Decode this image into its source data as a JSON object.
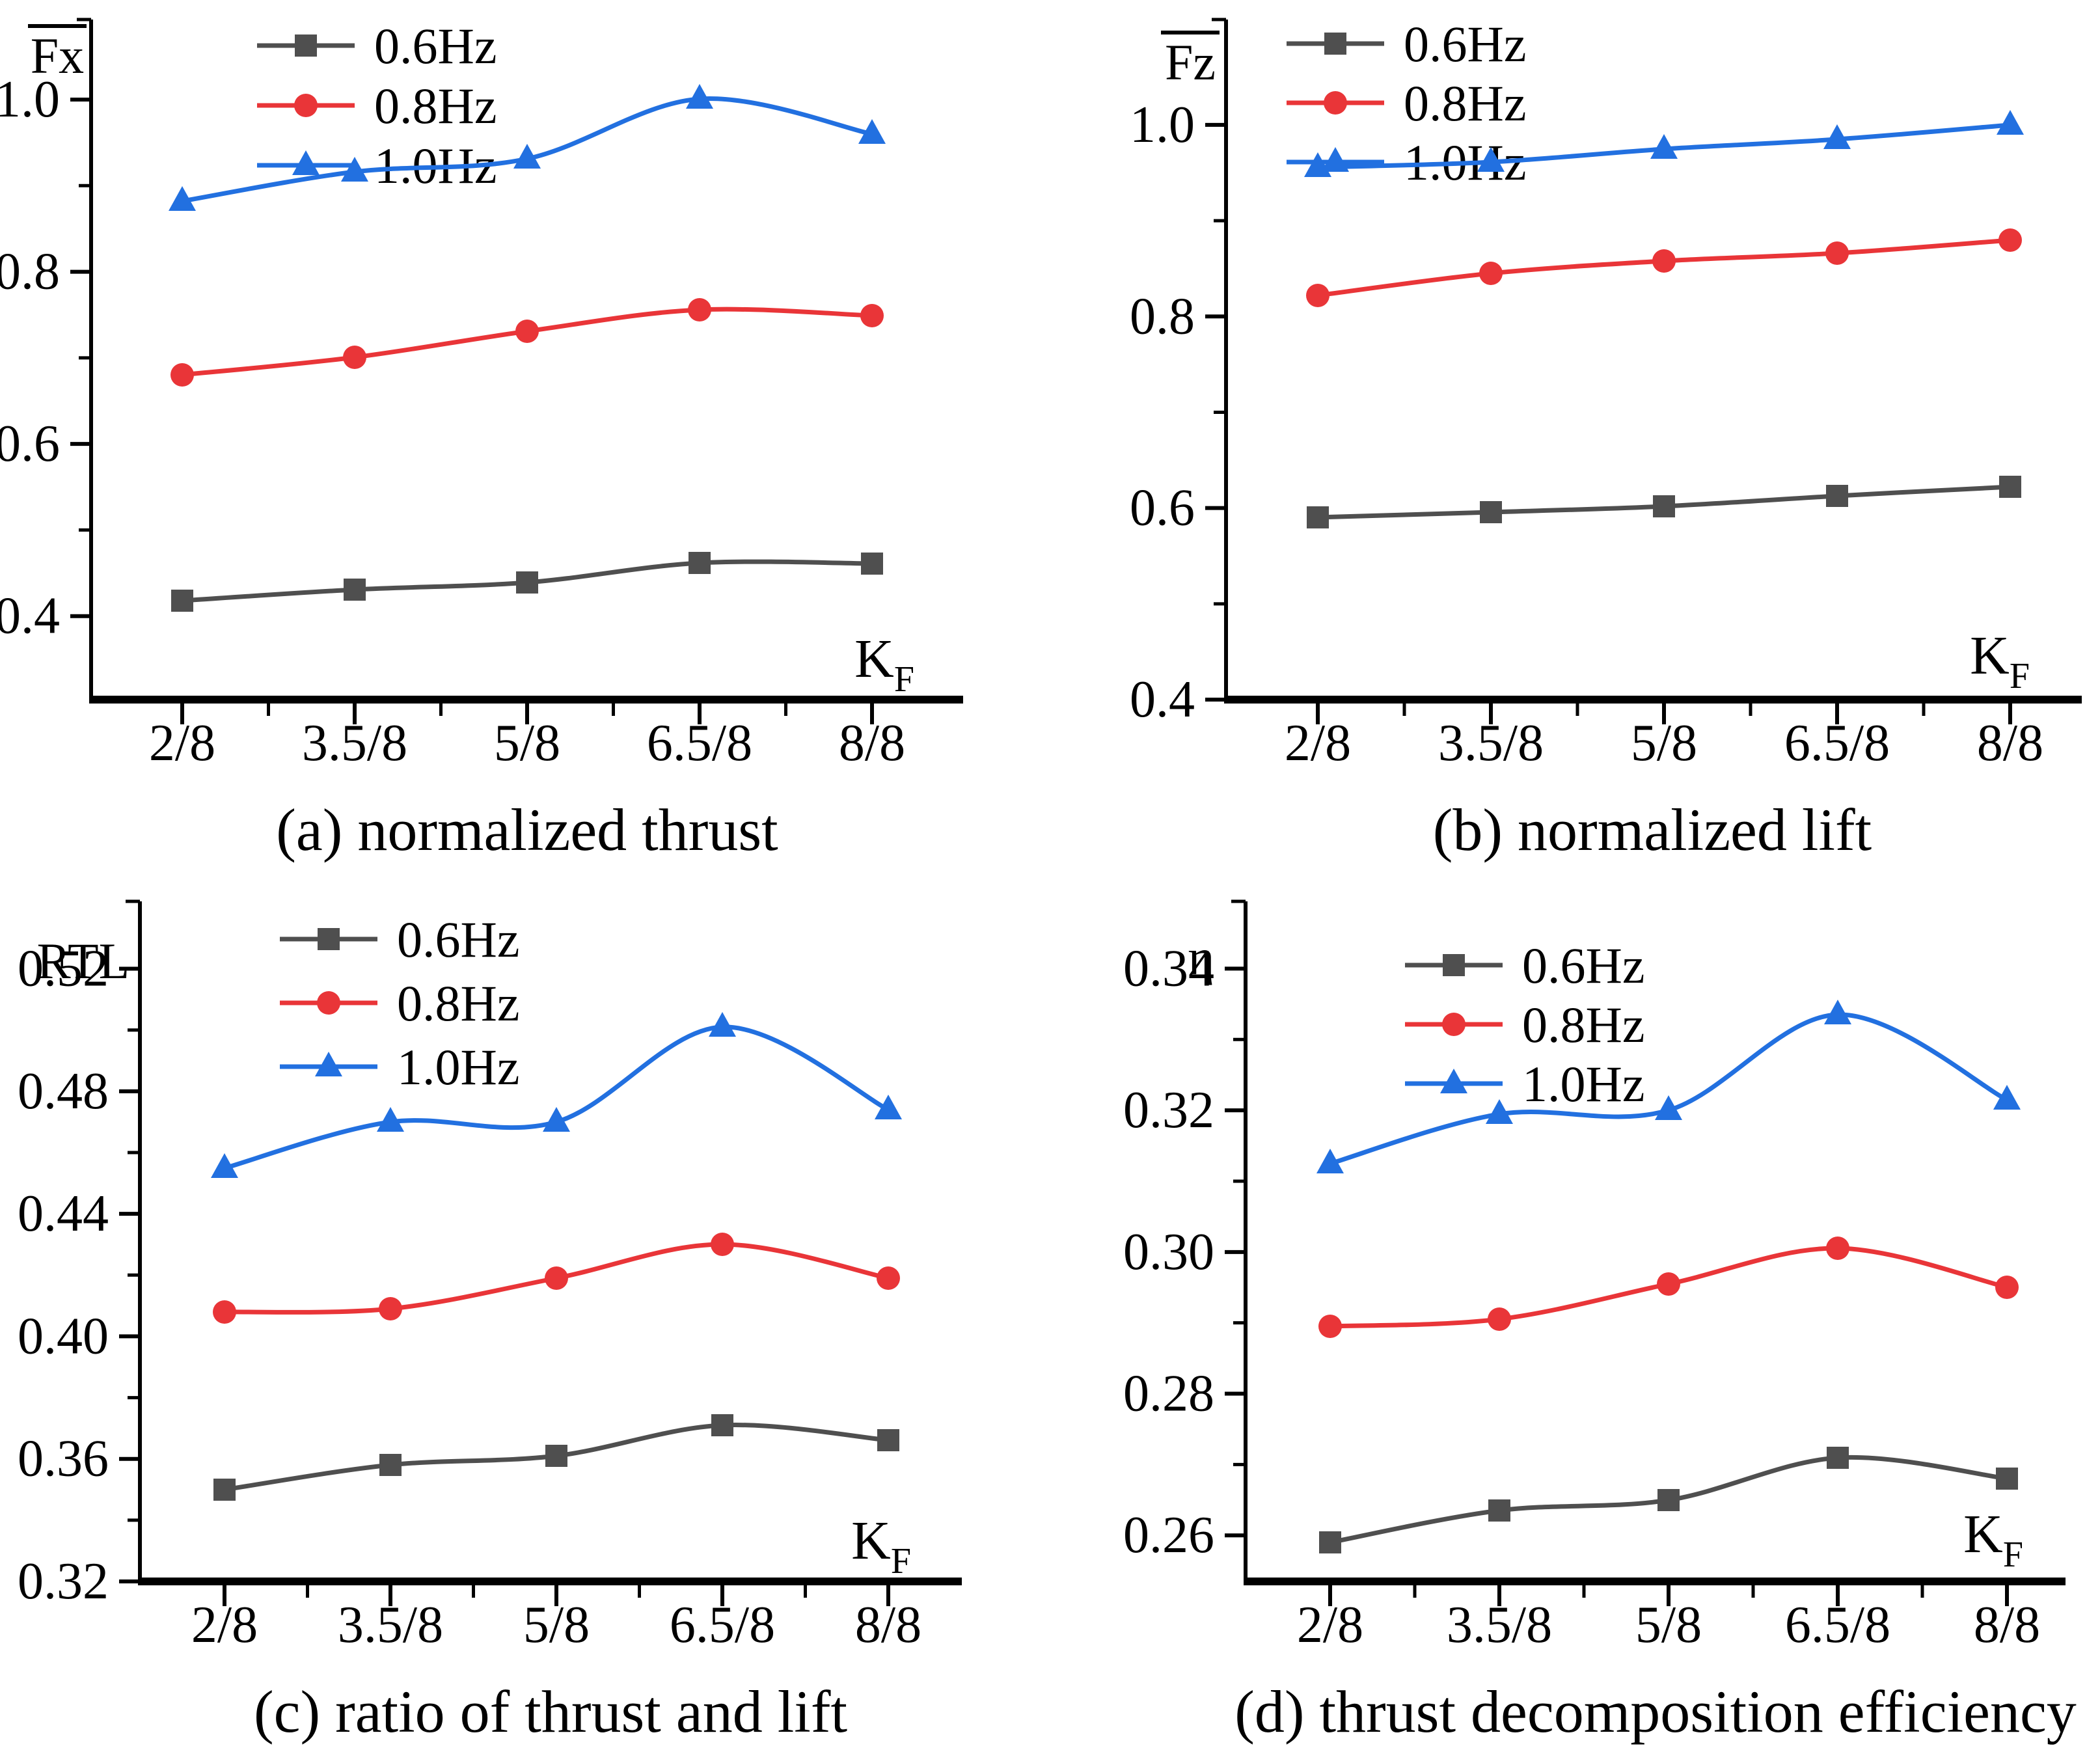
{
  "legend": {
    "items": [
      {
        "label": "0.6Hz",
        "marker": "square",
        "color": "#4f4f4f"
      },
      {
        "label": "0.8Hz",
        "marker": "circle",
        "color": "#e93538"
      },
      {
        "label": "1.0Hz",
        "marker": "triangle",
        "color": "#2270e0"
      }
    ]
  },
  "x_axis": {
    "label_main": "K",
    "label_sub": "F",
    "categories": [
      "2/8",
      "3.5/8",
      "5/8",
      "6.5/8",
      "8/8"
    ]
  },
  "chart_data": [
    {
      "type": "line",
      "caption": "(a) normalized thrust",
      "y_axis_title": "Fx",
      "y_axis_title_overline": true,
      "xlabel": "KF",
      "categories": [
        "2/8",
        "3.5/8",
        "5/8",
        "6.5/8",
        "8/8"
      ],
      "ylim": [
        0.303,
        1.093
      ],
      "yticks": [
        {
          "v": 0.4,
          "label": "0.4"
        },
        {
          "v": 0.6,
          "label": "0.6"
        },
        {
          "v": 0.8,
          "label": "0.8"
        },
        {
          "v": 1.0,
          "label": "1.0"
        }
      ],
      "yticks_minor": [
        0.5,
        0.7,
        0.9
      ],
      "grid": false,
      "legend_position": "inset-top-left",
      "series": [
        {
          "name": "0.6Hz",
          "marker": "square",
          "color": "#4f4f4f",
          "values": [
            0.418,
            0.431,
            0.439,
            0.462,
            0.461
          ]
        },
        {
          "name": "0.8Hz",
          "marker": "circle",
          "color": "#e93538",
          "values": [
            0.68,
            0.701,
            0.731,
            0.756,
            0.749
          ]
        },
        {
          "name": "1.0Hz",
          "marker": "triangle",
          "color": "#2270e0",
          "values": [
            0.882,
            0.916,
            0.931,
            1.001,
            0.96
          ]
        }
      ]
    },
    {
      "type": "line",
      "caption": "(b) normalized lift",
      "y_axis_title": "Fz",
      "y_axis_title_overline": true,
      "xlabel": "KF",
      "categories": [
        "2/8",
        "3.5/8",
        "5/8",
        "6.5/8",
        "8/8"
      ],
      "ylim": [
        0.4,
        1.11
      ],
      "yticks": [
        {
          "v": 0.4,
          "label": "0.4"
        },
        {
          "v": 0.6,
          "label": "0.6"
        },
        {
          "v": 0.8,
          "label": "0.8"
        },
        {
          "v": 1.0,
          "label": "1.0"
        }
      ],
      "yticks_minor": [
        0.5,
        0.7,
        0.9
      ],
      "grid": false,
      "legend_position": "inset-top-left",
      "series": [
        {
          "name": "0.6Hz",
          "marker": "square",
          "color": "#4f4f4f",
          "values": [
            0.59,
            0.596,
            0.602,
            0.613,
            0.622
          ]
        },
        {
          "name": "0.8Hz",
          "marker": "circle",
          "color": "#e93538",
          "values": [
            0.822,
            0.845,
            0.858,
            0.866,
            0.88
          ]
        },
        {
          "name": "1.0Hz",
          "marker": "triangle",
          "color": "#2270e0",
          "values": [
            0.956,
            0.961,
            0.975,
            0.985,
            1.0
          ]
        }
      ]
    },
    {
      "type": "line",
      "caption": "(c) ratio of thrust and lift",
      "y_axis_title": "RTL",
      "y_axis_title_overline": false,
      "xlabel": "KF",
      "categories": [
        "2/8",
        "3.5/8",
        "5/8",
        "6.5/8",
        "8/8"
      ],
      "ylim": [
        0.32,
        0.542
      ],
      "yticks": [
        {
          "v": 0.32,
          "label": "0.32"
        },
        {
          "v": 0.36,
          "label": "0.36"
        },
        {
          "v": 0.4,
          "label": "0.40"
        },
        {
          "v": 0.44,
          "label": "0.44"
        },
        {
          "v": 0.48,
          "label": "0.48"
        },
        {
          "v": 0.52,
          "label": "0.52"
        }
      ],
      "yticks_minor": [
        0.34,
        0.38,
        0.42,
        0.46,
        0.5
      ],
      "grid": false,
      "legend_position": "inset-top-left",
      "series": [
        {
          "name": "0.6Hz",
          "marker": "square",
          "color": "#4f4f4f",
          "values": [
            0.35,
            0.358,
            0.361,
            0.371,
            0.366
          ]
        },
        {
          "name": "0.8Hz",
          "marker": "circle",
          "color": "#e93538",
          "values": [
            0.408,
            0.409,
            0.419,
            0.43,
            0.419
          ]
        },
        {
          "name": "1.0Hz",
          "marker": "triangle",
          "color": "#2270e0",
          "values": [
            0.455,
            0.47,
            0.47,
            0.501,
            0.474
          ]
        }
      ]
    },
    {
      "type": "line",
      "caption": "(d) thrust decomposition efficiency",
      "y_axis_title": "η",
      "y_axis_title_overline": false,
      "xlabel": "KF",
      "categories": [
        "2/8",
        "3.5/8",
        "5/8",
        "6.5/8",
        "8/8"
      ],
      "ylim": [
        0.2535,
        0.3495
      ],
      "yticks": [
        {
          "v": 0.26,
          "label": "0.26"
        },
        {
          "v": 0.28,
          "label": "0.28"
        },
        {
          "v": 0.3,
          "label": "0.30"
        },
        {
          "v": 0.32,
          "label": "0.32"
        },
        {
          "v": 0.34,
          "label": "0.34"
        }
      ],
      "yticks_minor": [
        0.27,
        0.29,
        0.31,
        0.33
      ],
      "grid": false,
      "legend_position": "inset-top-left",
      "series": [
        {
          "name": "0.6Hz",
          "marker": "square",
          "color": "#4f4f4f",
          "values": [
            0.259,
            0.2635,
            0.265,
            0.271,
            0.268
          ]
        },
        {
          "name": "0.8Hz",
          "marker": "circle",
          "color": "#e93538",
          "values": [
            0.2895,
            0.2905,
            0.2955,
            0.3005,
            0.295
          ]
        },
        {
          "name": "1.0Hz",
          "marker": "triangle",
          "color": "#2270e0",
          "values": [
            0.3125,
            0.3195,
            0.32,
            0.3335,
            0.3215
          ]
        }
      ]
    }
  ]
}
